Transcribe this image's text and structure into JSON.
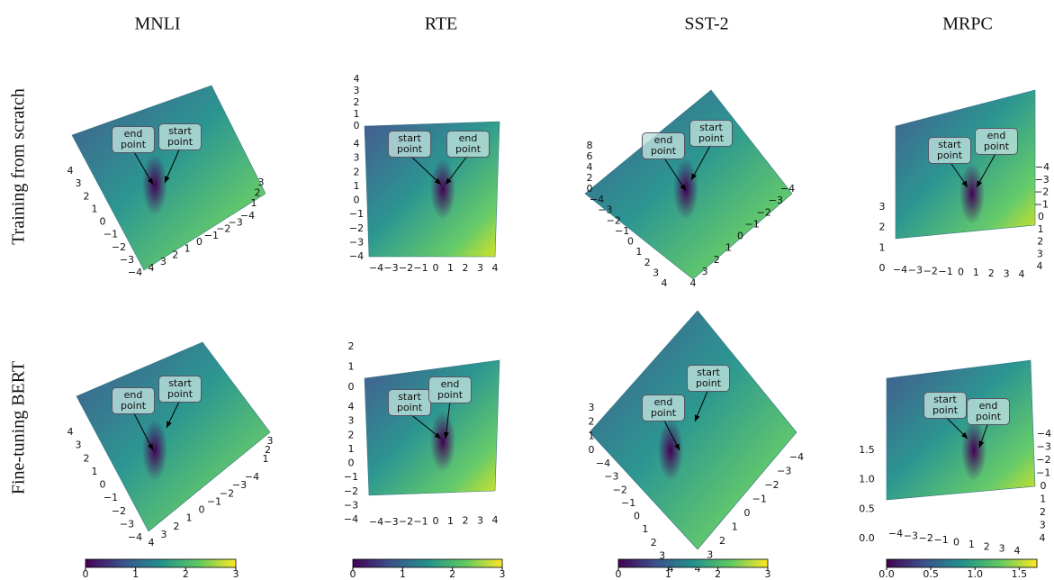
{
  "columns": [
    "MNLI",
    "RTE",
    "SST-2",
    "MRPC"
  ],
  "rows": [
    "Training from scratch",
    "Fine-tuning BERT"
  ],
  "chart_data": [
    {
      "type": "surface",
      "annotations": [
        "end point",
        "start point"
      ],
      "xticks": [
        {
          "value": -4,
          "label": "−4"
        },
        {
          "value": -3,
          "label": "−3"
        },
        {
          "value": -2,
          "label": "−2"
        },
        {
          "value": -1,
          "label": "−1"
        },
        0,
        1,
        2,
        3,
        4
      ],
      "yticks": [
        {
          "value": -4,
          "label": "−4"
        },
        {
          "value": -3,
          "label": "−3"
        },
        {
          "value": -2,
          "label": "−2"
        },
        {
          "value": -1,
          "label": "−1"
        },
        0,
        1,
        2,
        3,
        4
      ],
      "zticks": [
        1,
        2,
        3
      ]
    },
    {
      "type": "surface",
      "annotations": [
        "start point",
        "end point"
      ],
      "xticks": [
        {
          "value": -4,
          "label": "−4"
        },
        {
          "value": -3,
          "label": "−3"
        },
        {
          "value": -2,
          "label": "−2"
        },
        {
          "value": -1,
          "label": "−1"
        },
        0,
        1,
        2,
        3,
        4
      ],
      "yticks": [
        {
          "value": -4,
          "label": "−4"
        },
        {
          "value": -3,
          "label": "−3"
        },
        {
          "value": -2,
          "label": "−2"
        },
        {
          "value": -1,
          "label": "−1"
        },
        0,
        1,
        2,
        3,
        4
      ],
      "zticks": [
        0,
        1,
        2,
        3,
        4
      ]
    },
    {
      "type": "surface",
      "annotations": [
        "end point",
        "start point"
      ],
      "xticks": [
        {
          "value": -4,
          "label": "−4"
        },
        {
          "value": -3,
          "label": "−3"
        },
        {
          "value": -2,
          "label": "−2"
        },
        {
          "value": -1,
          "label": "−1"
        },
        0,
        1,
        2,
        3,
        4
      ],
      "yticks": [
        {
          "value": -4,
          "label": "−4"
        },
        {
          "value": -3,
          "label": "−3"
        },
        {
          "value": -2,
          "label": "−2"
        },
        {
          "value": -1,
          "label": "−1"
        },
        0,
        1,
        2,
        3,
        4
      ],
      "zticks": [
        0,
        2,
        4,
        6,
        8
      ]
    },
    {
      "type": "surface",
      "annotations": [
        "start point",
        "end point"
      ],
      "xticks": [
        {
          "value": -4,
          "label": "−4"
        },
        {
          "value": -3,
          "label": "−3"
        },
        {
          "value": -2,
          "label": "−2"
        },
        {
          "value": -1,
          "label": "−1"
        },
        0,
        1,
        2,
        3,
        4
      ],
      "yticks": [
        {
          "value": -4,
          "label": "−4"
        },
        {
          "value": -3,
          "label": "−3"
        },
        {
          "value": -2,
          "label": "−2"
        },
        {
          "value": -1,
          "label": "−1"
        },
        0,
        1,
        2,
        3,
        4
      ],
      "zticks": [
        0,
        1,
        2,
        3
      ]
    },
    {
      "type": "surface",
      "annotations": [
        "end point",
        "start point"
      ],
      "xticks": [
        {
          "value": -4,
          "label": "−4"
        },
        {
          "value": -3,
          "label": "−3"
        },
        {
          "value": -2,
          "label": "−2"
        },
        {
          "value": -1,
          "label": "−1"
        },
        0,
        1,
        2,
        3,
        4
      ],
      "yticks": [
        {
          "value": -4,
          "label": "−4"
        },
        {
          "value": -3,
          "label": "−3"
        },
        {
          "value": -2,
          "label": "−2"
        },
        {
          "value": -1,
          "label": "−1"
        },
        0,
        1,
        2,
        3,
        4
      ],
      "zticks": [
        1,
        2,
        3
      ],
      "colorbar": {
        "lim": [
          0,
          3
        ],
        "ticks": [
          0,
          1,
          2,
          3
        ]
      }
    },
    {
      "type": "surface",
      "annotations": [
        "start point",
        "end point"
      ],
      "xticks": [
        {
          "value": -4,
          "label": "−4"
        },
        {
          "value": -3,
          "label": "−3"
        },
        {
          "value": -2,
          "label": "−2"
        },
        {
          "value": -1,
          "label": "−1"
        },
        0,
        1,
        2,
        3,
        4
      ],
      "yticks": [
        {
          "value": -4,
          "label": "−4"
        },
        {
          "value": -3,
          "label": "−3"
        },
        {
          "value": -2,
          "label": "−2"
        },
        {
          "value": -1,
          "label": "−1"
        },
        0,
        1,
        2,
        3,
        4
      ],
      "zticks": [
        0,
        1,
        2
      ],
      "colorbar": {
        "lim": [
          0,
          3
        ],
        "ticks": [
          0,
          1,
          2,
          3
        ]
      }
    },
    {
      "type": "surface",
      "annotations": [
        "end point",
        "start point"
      ],
      "xticks": [
        {
          "value": -4,
          "label": "−4"
        },
        {
          "value": -3,
          "label": "−3"
        },
        {
          "value": -2,
          "label": "−2"
        },
        {
          "value": -1,
          "label": "−1"
        },
        0,
        1,
        2,
        3,
        4
      ],
      "yticks": [
        {
          "value": -4,
          "label": "−4"
        },
        {
          "value": -3,
          "label": "−3"
        },
        {
          "value": -2,
          "label": "−2"
        },
        {
          "value": -1,
          "label": "−1"
        },
        0,
        1,
        2,
        3,
        4
      ],
      "zticks": [
        0,
        1,
        2,
        3
      ],
      "colorbar": {
        "lim": [
          0,
          3
        ],
        "ticks": [
          0,
          1,
          2,
          3
        ]
      }
    },
    {
      "type": "surface",
      "annotations": [
        "start point",
        "end point"
      ],
      "xticks": [
        {
          "value": -4,
          "label": "−4"
        },
        {
          "value": -3,
          "label": "−3"
        },
        {
          "value": -2,
          "label": "−2"
        },
        {
          "value": -1,
          "label": "−1"
        },
        0,
        1,
        2,
        3,
        4
      ],
      "yticks": [
        {
          "value": -4,
          "label": "−4"
        },
        {
          "value": -3,
          "label": "−3"
        },
        {
          "value": -2,
          "label": "−2"
        },
        {
          "value": -1,
          "label": "−1"
        },
        0,
        1,
        2,
        3,
        4
      ],
      "zticks": [
        {
          "value": 0,
          "label": "0.0"
        },
        {
          "value": 0.5,
          "label": "0.5"
        },
        {
          "value": 1,
          "label": "1.0"
        },
        {
          "value": 1.5,
          "label": "1.5"
        }
      ],
      "colorbar": {
        "lim": [
          0,
          1.7
        ],
        "ticks": [
          {
            "value": 0,
            "label": "0.0"
          },
          {
            "value": 0.5,
            "label": "0.5"
          },
          {
            "value": 1,
            "label": "1.0"
          },
          {
            "value": 1.5,
            "label": "1.5"
          }
        ]
      }
    }
  ]
}
